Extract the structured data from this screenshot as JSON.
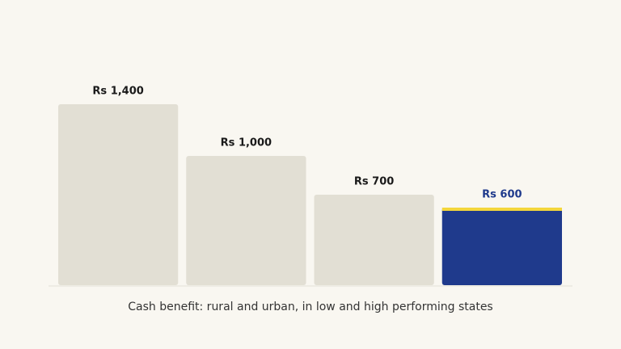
{
  "chart_data": {
    "type": "bar",
    "categories": [
      null,
      null,
      null,
      null
    ],
    "values": [
      1400,
      1000,
      700,
      600
    ],
    "value_labels": [
      "Rs 1,400",
      "Rs 1,000",
      "Rs 700",
      "Rs 600"
    ],
    "colors": [
      "#e2dfd4",
      "#e2dfd4",
      "#e2dfd4",
      "#1f3a8c"
    ],
    "label_colors": [
      "#1a1a1a",
      "#1a1a1a",
      "#1a1a1a",
      "#1f3a8c"
    ],
    "top_stripe_colors": [
      null,
      null,
      null,
      "#f3d63c"
    ],
    "xlabel": "Cash benefit: rural and urban, in low and high performing states"
  }
}
